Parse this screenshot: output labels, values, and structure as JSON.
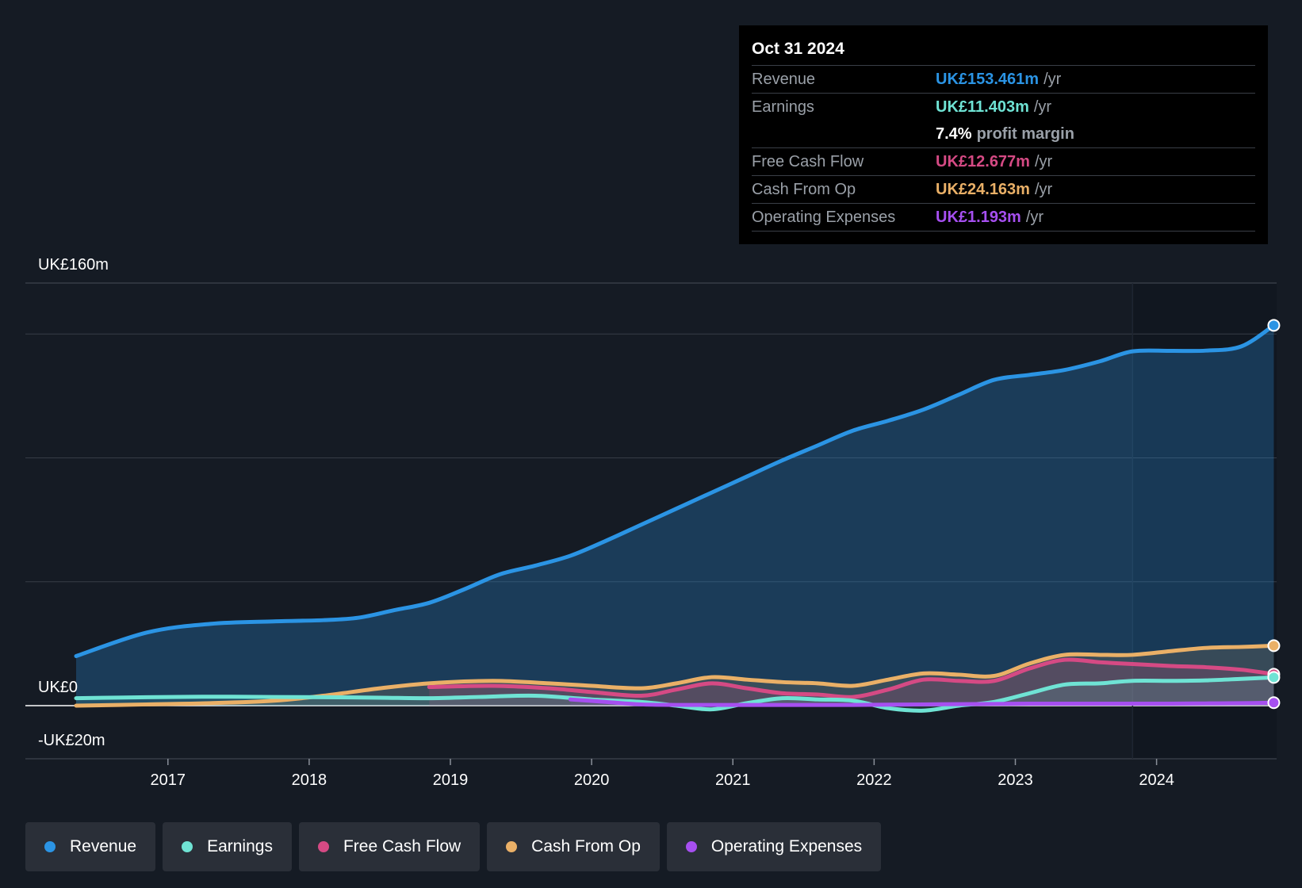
{
  "colors": {
    "revenue": "#2b94e4",
    "earnings": "#6fe3d4",
    "fcf": "#d54a84",
    "cfo": "#eab067",
    "opex": "#a64ff0",
    "grid": "#363c46",
    "zero": "#ffffff"
  },
  "tooltip": {
    "date": "Oct 31 2024",
    "rows": {
      "revenue": {
        "label": "Revenue",
        "value": "UK£153.461m",
        "unit": "/yr"
      },
      "earnings": {
        "label": "Earnings",
        "value": "UK£11.403m",
        "unit": "/yr"
      },
      "margin": {
        "value": "7.4%",
        "text": "profit margin"
      },
      "fcf": {
        "label": "Free Cash Flow",
        "value": "UK£12.677m",
        "unit": "/yr"
      },
      "cfo": {
        "label": "Cash From Op",
        "value": "UK£24.163m",
        "unit": "/yr"
      },
      "opex": {
        "label": "Operating Expenses",
        "value": "UK£1.193m",
        "unit": "/yr"
      }
    }
  },
  "legend": [
    {
      "label": "Revenue",
      "color": "#2b94e4"
    },
    {
      "label": "Earnings",
      "color": "#6fe3d4"
    },
    {
      "label": "Free Cash Flow",
      "color": "#d54a84"
    },
    {
      "label": "Cash From Op",
      "color": "#eab067"
    },
    {
      "label": "Operating Expenses",
      "color": "#a64ff0"
    }
  ],
  "chart_data": {
    "type": "line",
    "title": "",
    "xlabel": "",
    "ylabel": "",
    "xlim": [
      2016.35,
      2024.85
    ],
    "ylim": [
      -20,
      160
    ],
    "y_axis_labels": [
      {
        "value": 160,
        "label": "UK£160m"
      },
      {
        "value": 0,
        "label": "UK£0"
      },
      {
        "value": -20,
        "label": "-UK£20m"
      }
    ],
    "x_ticks": [
      2017,
      2018,
      2019,
      2020,
      2021,
      2022,
      2023,
      2024
    ],
    "x_tick_labels": [
      "2017",
      "2018",
      "2019",
      "2020",
      "2021",
      "2022",
      "2023",
      "2024"
    ],
    "highlight_start": 2023.83,
    "series": [
      {
        "key": "revenue",
        "name": "Revenue",
        "x": [
          2016.35,
          2016.85,
          2017.3,
          2017.75,
          2018.1,
          2018.35,
          2018.6,
          2018.85,
          2019.1,
          2019.35,
          2019.6,
          2019.85,
          2020.1,
          2020.35,
          2020.6,
          2020.85,
          2021.1,
          2021.35,
          2021.6,
          2021.85,
          2022.1,
          2022.35,
          2022.6,
          2022.85,
          2023.1,
          2023.35,
          2023.6,
          2023.83,
          2024.1,
          2024.35,
          2024.6,
          2024.83
        ],
        "values": [
          20,
          29.5,
          33,
          34,
          34.5,
          35.5,
          38.5,
          41.5,
          47,
          53,
          56.5,
          60.5,
          66.5,
          73,
          79.5,
          86,
          92.5,
          99,
          105,
          111,
          115,
          119.5,
          125.5,
          131.5,
          133.5,
          135.5,
          139,
          143,
          143.2,
          143.3,
          145,
          153.5
        ]
      },
      {
        "key": "earnings",
        "name": "Earnings",
        "x": [
          2016.35,
          2016.85,
          2017.3,
          2017.75,
          2018.1,
          2018.5,
          2018.85,
          2019.2,
          2019.6,
          2020.0,
          2020.35,
          2020.6,
          2020.85,
          2021.1,
          2021.35,
          2021.6,
          2021.85,
          2022.1,
          2022.35,
          2022.6,
          2022.85,
          2023.1,
          2023.35,
          2023.6,
          2023.83,
          2024.1,
          2024.35,
          2024.6,
          2024.83
        ],
        "values": [
          3,
          3.4,
          3.6,
          3.5,
          3.4,
          3.2,
          3,
          3.5,
          4,
          2.5,
          1.5,
          0,
          -1.5,
          1,
          3,
          2.5,
          2,
          -1,
          -2,
          0,
          1.5,
          5,
          8.5,
          9,
          10,
          10,
          10.2,
          10.8,
          11.4
        ]
      },
      {
        "key": "fcf",
        "name": "Free Cash Flow",
        "x": [
          2018.85,
          2019.3,
          2019.7,
          2020.0,
          2020.35,
          2020.6,
          2020.85,
          2021.1,
          2021.35,
          2021.6,
          2021.85,
          2022.1,
          2022.35,
          2022.6,
          2022.85,
          2023.1,
          2023.35,
          2023.6,
          2023.83,
          2024.1,
          2024.35,
          2024.6,
          2024.83
        ],
        "values": [
          7.5,
          8,
          7,
          5.5,
          4,
          6.5,
          9,
          7,
          5,
          4.5,
          3.5,
          6.5,
          10.5,
          10,
          10,
          15,
          18.5,
          17.5,
          16.8,
          16,
          15.5,
          14.5,
          12.7
        ]
      },
      {
        "key": "cfo",
        "name": "Cash From Op",
        "x": [
          2016.35,
          2016.85,
          2017.3,
          2017.75,
          2018.1,
          2018.5,
          2018.85,
          2019.3,
          2019.7,
          2020.0,
          2020.35,
          2020.6,
          2020.85,
          2021.1,
          2021.35,
          2021.6,
          2021.85,
          2022.1,
          2022.35,
          2022.6,
          2022.85,
          2023.1,
          2023.35,
          2023.6,
          2023.83,
          2024.1,
          2024.35,
          2024.6,
          2024.83
        ],
        "values": [
          0,
          0.5,
          1,
          2,
          4,
          7,
          9,
          10,
          9,
          8,
          7,
          9,
          11.5,
          10.5,
          9.5,
          9,
          8,
          10.5,
          13,
          12.5,
          12,
          17,
          20.5,
          20.5,
          20.5,
          22,
          23.3,
          23.7,
          24.2
        ]
      },
      {
        "key": "opex",
        "name": "Operating Expenses",
        "x": [
          2019.85,
          2020.1,
          2020.35,
          2020.6,
          2020.85,
          2021.1,
          2021.35,
          2021.6,
          2021.85,
          2022.1,
          2022.35,
          2022.6,
          2022.85,
          2023.1,
          2023.35,
          2023.6,
          2023.83,
          2024.1,
          2024.35,
          2024.6,
          2024.83
        ],
        "values": [
          2.5,
          1.5,
          0.5,
          0.3,
          0.3,
          0.3,
          0.3,
          0.3,
          0.3,
          0.4,
          0.5,
          0.6,
          0.7,
          0.8,
          0.8,
          0.8,
          0.8,
          0.8,
          0.9,
          1.0,
          1.2
        ]
      }
    ]
  }
}
